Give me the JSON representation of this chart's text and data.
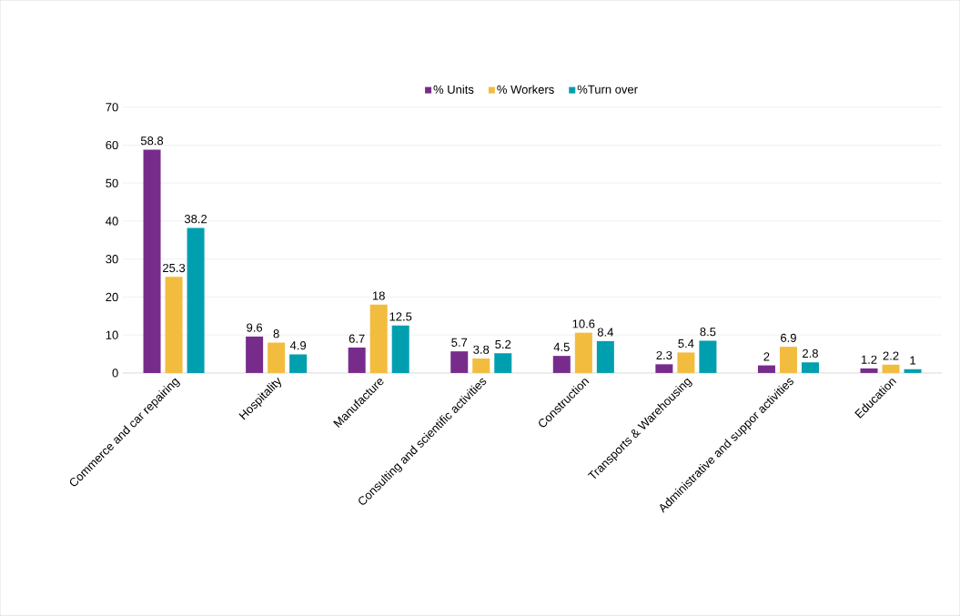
{
  "chart_data": {
    "type": "bar",
    "categories": [
      "Commerce and car repairing",
      "Hospitality",
      "Manufacture",
      "Consulting and scientific activities",
      "Construction",
      "Transports & Warehousing",
      "Administrative and suppor activities",
      "Education"
    ],
    "series": [
      {
        "name": "% Units",
        "color": "#772c8c",
        "values": [
          58.8,
          9.6,
          6.7,
          5.7,
          4.5,
          2.3,
          2,
          1.2
        ]
      },
      {
        "name": "% Workers",
        "color": "#f2bc3f",
        "values": [
          25.3,
          8,
          18,
          3.8,
          10.6,
          5.4,
          6.9,
          2.2
        ]
      },
      {
        "name": "%Turn over",
        "color": "#009fb0",
        "values": [
          38.2,
          4.9,
          12.5,
          5.2,
          8.4,
          8.5,
          2.8,
          1
        ]
      }
    ],
    "ylim": [
      0,
      70
    ],
    "yticks": [
      0,
      10,
      20,
      30,
      40,
      50,
      60,
      70
    ],
    "grid": "y",
    "legend": "top",
    "data_labels": true
  }
}
